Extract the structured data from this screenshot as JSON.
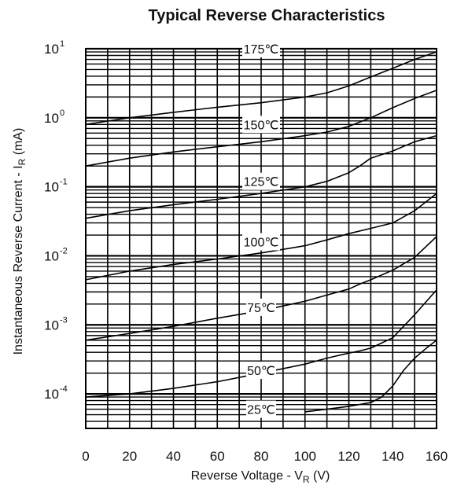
{
  "chart_data": {
    "type": "line",
    "title": "Typical Reverse Characteristics",
    "xlabel": {
      "main": "Reverse Voltage - V",
      "sub": "R",
      "tail": " (V)"
    },
    "ylabel": {
      "main": "Instantaneous Reverse Current - I",
      "sub": "R",
      "tail": " (mA)"
    },
    "x_ticks": [
      "0",
      "20",
      "40",
      "60",
      "80",
      "100",
      "120",
      "140",
      "160"
    ],
    "y_ticks": [
      {
        "base": "10",
        "exp": "1"
      },
      {
        "base": "10",
        "exp": "0"
      },
      {
        "base": "10",
        "exp": "-1"
      },
      {
        "base": "10",
        "exp": "-2"
      },
      {
        "base": "10",
        "exp": "-3"
      },
      {
        "base": "10",
        "exp": "-4"
      }
    ],
    "xlim": [
      0,
      160
    ],
    "ylim_log10": [
      -4.5,
      1
    ],
    "y_scale": "log",
    "grid": true,
    "series": [
      {
        "label": "175℃",
        "label_at": [
          80,
          10
        ],
        "points": [
          [
            0,
            0.8
          ],
          [
            20,
            1.0
          ],
          [
            40,
            1.2
          ],
          [
            60,
            1.42
          ],
          [
            80,
            1.65
          ],
          [
            100,
            2.0
          ],
          [
            110,
            2.3
          ],
          [
            120,
            2.9
          ],
          [
            130,
            3.9
          ],
          [
            140,
            5.2
          ],
          [
            150,
            7.0
          ],
          [
            160,
            9.0
          ]
        ]
      },
      {
        "label": "150℃",
        "label_at": [
          80,
          0.8
        ],
        "points": [
          [
            0,
            0.2
          ],
          [
            20,
            0.26
          ],
          [
            40,
            0.32
          ],
          [
            60,
            0.38
          ],
          [
            80,
            0.45
          ],
          [
            100,
            0.55
          ],
          [
            110,
            0.62
          ],
          [
            120,
            0.75
          ],
          [
            130,
            1.0
          ],
          [
            140,
            1.4
          ],
          [
            150,
            1.9
          ],
          [
            160,
            2.5
          ]
        ]
      },
      {
        "label": "125℃",
        "label_at": [
          80,
          0.12
        ],
        "points": [
          [
            0,
            0.035
          ],
          [
            20,
            0.045
          ],
          [
            40,
            0.055
          ],
          [
            60,
            0.066
          ],
          [
            80,
            0.08
          ],
          [
            100,
            0.1
          ],
          [
            110,
            0.12
          ],
          [
            120,
            0.16
          ],
          [
            125,
            0.2
          ],
          [
            130,
            0.26
          ],
          [
            140,
            0.33
          ],
          [
            150,
            0.45
          ],
          [
            160,
            0.55
          ]
        ]
      },
      {
        "label": "100℃",
        "label_at": [
          80,
          0.016
        ],
        "points": [
          [
            0,
            0.0045
          ],
          [
            20,
            0.006
          ],
          [
            40,
            0.0075
          ],
          [
            60,
            0.009
          ],
          [
            80,
            0.011
          ],
          [
            100,
            0.014
          ],
          [
            110,
            0.017
          ],
          [
            120,
            0.021
          ],
          [
            130,
            0.025
          ],
          [
            140,
            0.03
          ],
          [
            150,
            0.045
          ],
          [
            155,
            0.06
          ],
          [
            160,
            0.08
          ]
        ]
      },
      {
        "label": "75℃",
        "label_at": [
          80,
          0.0018
        ],
        "points": [
          [
            0,
            0.0006
          ],
          [
            20,
            0.00075
          ],
          [
            40,
            0.00095
          ],
          [
            60,
            0.00125
          ],
          [
            80,
            0.0016
          ],
          [
            100,
            0.0022
          ],
          [
            110,
            0.0027
          ],
          [
            120,
            0.0033
          ],
          [
            125,
            0.0039
          ],
          [
            130,
            0.0045
          ],
          [
            140,
            0.0062
          ],
          [
            150,
            0.0095
          ],
          [
            160,
            0.019
          ]
        ]
      },
      {
        "label": "50℃",
        "label_at": [
          80,
          0.00022
        ],
        "points": [
          [
            0,
            9e-05
          ],
          [
            20,
            0.0001
          ],
          [
            40,
            0.00012
          ],
          [
            60,
            0.00015
          ],
          [
            80,
            0.0002
          ],
          [
            100,
            0.00027
          ],
          [
            110,
            0.00033
          ],
          [
            120,
            0.00039
          ],
          [
            125,
            0.00042
          ],
          [
            130,
            0.00046
          ],
          [
            140,
            0.00065
          ],
          [
            150,
            0.0014
          ],
          [
            160,
            0.0032
          ]
        ]
      },
      {
        "label": "25℃",
        "label_at": [
          80,
          6e-05
        ],
        "points": [
          [
            100,
            5.5e-05
          ],
          [
            110,
            6e-05
          ],
          [
            120,
            6.6e-05
          ],
          [
            130,
            7.5e-05
          ],
          [
            135,
            9e-05
          ],
          [
            140,
            0.00013
          ],
          [
            145,
            0.00022
          ],
          [
            150,
            0.00033
          ],
          [
            155,
            0.00045
          ],
          [
            160,
            0.0006
          ]
        ]
      }
    ]
  }
}
